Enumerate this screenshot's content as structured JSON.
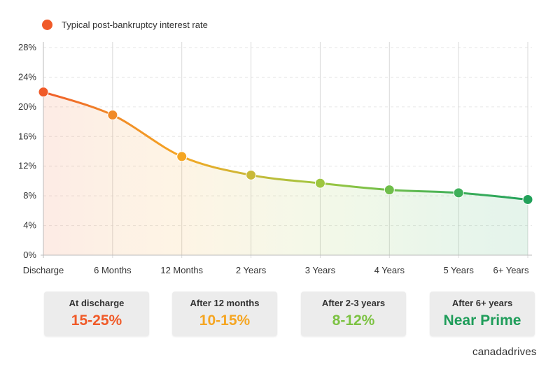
{
  "legend": {
    "label": "Typical post-bankruptcy interest rate",
    "color": "#f05a28"
  },
  "chart_data": {
    "type": "line",
    "title": "",
    "xlabel": "",
    "ylabel": "",
    "categories": [
      "Discharge",
      "6 Months",
      "12 Months",
      "2 Years",
      "3 Years",
      "4 Years",
      "5 Years",
      "6+ Years"
    ],
    "series": [
      {
        "name": "Typical post-bankruptcy interest rate",
        "values": [
          22.0,
          18.9,
          13.3,
          10.8,
          9.7,
          8.8,
          8.4,
          7.5
        ],
        "colors": [
          "#f05a28",
          "#f08a28",
          "#f5a623",
          "#c9b938",
          "#9ec640",
          "#6fbe4a",
          "#3faf5a",
          "#22a15a"
        ]
      }
    ],
    "ylim": [
      0,
      28
    ],
    "yticks": [
      0,
      4,
      8,
      12,
      16,
      20,
      24,
      28
    ],
    "ytick_labels": [
      "0%",
      "4%",
      "8%",
      "12%",
      "16%",
      "20%",
      "24%",
      "28%"
    ],
    "grid": true,
    "legend_position": "top-left"
  },
  "cards": [
    {
      "title": "At discharge",
      "value": "15-25%",
      "color": "#f05a28"
    },
    {
      "title": "After 12 months",
      "value": "10-15%",
      "color": "#f5a623"
    },
    {
      "title": "After 2-3 years",
      "value": "8-12%",
      "color": "#7cc242"
    },
    {
      "title": "After 6+ years",
      "value": "Near Prime",
      "color": "#1f9d5a"
    }
  ],
  "brand": "canadadrives"
}
